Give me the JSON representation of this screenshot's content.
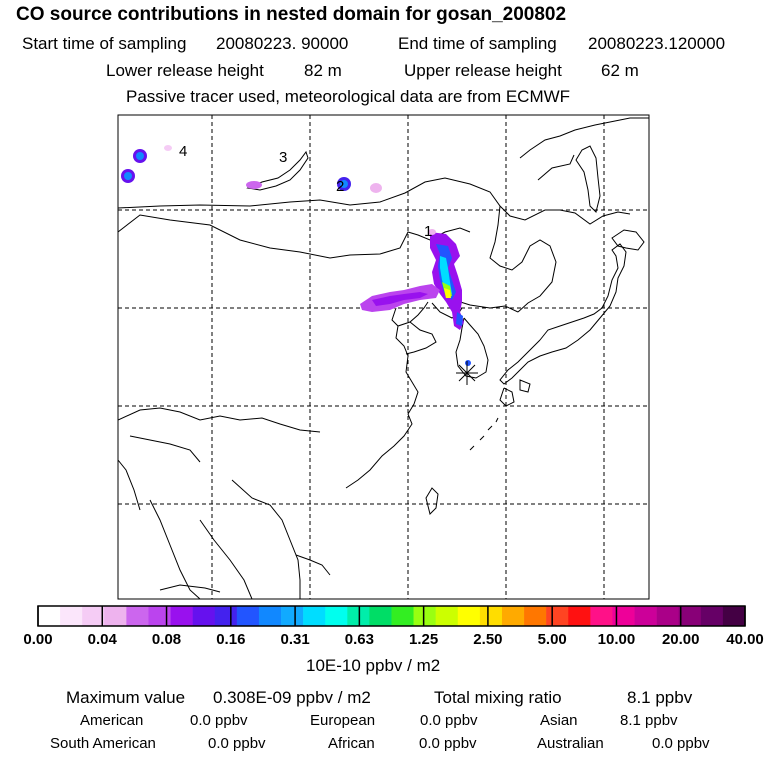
{
  "header": {
    "title": "CO  source contributions in nested domain for gosan_200802",
    "start_label": "Start time of sampling",
    "start_value": "20080223. 90000",
    "end_label": "End time of sampling",
    "end_value": "20080223.120000",
    "lower_label": "Lower release height",
    "lower_value": "82 m",
    "upper_label": "Upper release height",
    "upper_value": "62 m",
    "note": "Passive tracer used, meteorological data are from ECMWF"
  },
  "map": {
    "site_labels": [
      "1",
      "2",
      "3",
      "4"
    ],
    "receptor_marker": "gosan-receptor"
  },
  "colorbar": {
    "ticks": [
      "0.00",
      "0.04",
      "0.08",
      "0.16",
      "0.31",
      "0.63",
      "1.25",
      "2.50",
      "5.00",
      "10.00",
      "20.00",
      "40.00"
    ],
    "unit_label": "10E-10 ppbv / m2",
    "colors": [
      "#ffffff",
      "#fbe6fb",
      "#f5ccf5",
      "#eeb3ee",
      "#cc66ee",
      "#bb44ee",
      "#9911ee",
      "#6611ee",
      "#4422ee",
      "#2255ff",
      "#1188ff",
      "#11aaff",
      "#00ddff",
      "#00ffee",
      "#00eeaa",
      "#00dd66",
      "#33ee22",
      "#99ff11",
      "#ccff00",
      "#ffff00",
      "#ffdd00",
      "#ffaa00",
      "#ff7700",
      "#ff4422",
      "#ff1111",
      "#ff1188",
      "#ee0099",
      "#cc0099",
      "#aa0088",
      "#880077",
      "#660066",
      "#440044"
    ]
  },
  "footer": {
    "max_label": "Maximum value",
    "max_value": "0.308E-09 ppbv / m2",
    "total_label": "Total mixing ratio",
    "total_value": "8.1 ppbv",
    "regions": [
      {
        "name": "American",
        "value": "0.0 ppbv"
      },
      {
        "name": "European",
        "value": "0.0 ppbv"
      },
      {
        "name": "Asian",
        "value": "8.1 ppbv"
      },
      {
        "name": "South American",
        "value": "0.0 ppbv"
      },
      {
        "name": "African",
        "value": "0.0 ppbv"
      },
      {
        "name": "Australian",
        "value": "0.0 ppbv"
      }
    ]
  }
}
